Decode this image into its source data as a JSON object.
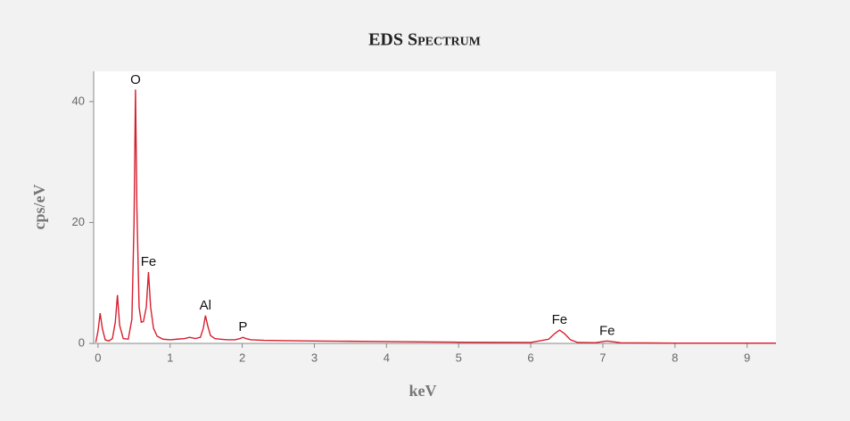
{
  "chart_data": {
    "type": "line",
    "title": "EDS Spectrum",
    "x_label": "keV",
    "y_label": "cps/eV",
    "color": "#d6202f",
    "x": [
      -0.03,
      0.0,
      0.03,
      0.06,
      0.1,
      0.15,
      0.2,
      0.24,
      0.27,
      0.3,
      0.35,
      0.42,
      0.47,
      0.5,
      0.52,
      0.54,
      0.57,
      0.6,
      0.63,
      0.67,
      0.7,
      0.73,
      0.77,
      0.82,
      0.9,
      1.0,
      1.1,
      1.2,
      1.27,
      1.35,
      1.42,
      1.46,
      1.49,
      1.52,
      1.56,
      1.62,
      1.7,
      1.8,
      1.9,
      1.97,
      2.01,
      2.05,
      2.12,
      2.3,
      2.6,
      3.0,
      3.5,
      4.0,
      4.5,
      5.0,
      5.5,
      6.0,
      6.25,
      6.33,
      6.4,
      6.47,
      6.55,
      6.65,
      6.9,
      7.0,
      7.06,
      7.12,
      7.25,
      7.6,
      8.0,
      8.5,
      9.0,
      9.4
    ],
    "values": [
      0.2,
      2.0,
      5.0,
      2.5,
      0.6,
      0.4,
      0.8,
      3.5,
      8.0,
      3.0,
      0.8,
      0.7,
      4.0,
      20,
      42,
      22,
      6,
      3.5,
      3.6,
      6,
      11.8,
      6,
      2.5,
      1.2,
      0.7,
      0.6,
      0.7,
      0.8,
      1.0,
      0.8,
      1.0,
      2.5,
      4.6,
      3.0,
      1.3,
      0.8,
      0.7,
      0.6,
      0.6,
      0.8,
      1.0,
      0.8,
      0.6,
      0.5,
      0.45,
      0.4,
      0.35,
      0.3,
      0.25,
      0.2,
      0.18,
      0.15,
      0.7,
      1.6,
      2.2,
      1.6,
      0.6,
      0.15,
      0.12,
      0.3,
      0.4,
      0.3,
      0.1,
      0.08,
      0.05,
      0.05,
      0.05,
      0.05
    ],
    "xlim": [
      -0.06,
      9.4
    ],
    "ylim": [
      0,
      45
    ],
    "xticks": [
      0,
      1,
      2,
      3,
      4,
      5,
      6,
      7,
      8,
      9
    ],
    "yticks": [
      0,
      20,
      40
    ],
    "annotations": [
      {
        "text": "O",
        "x": 0.52
      },
      {
        "text": "Fe",
        "x": 0.7
      },
      {
        "text": "Al",
        "x": 1.49
      },
      {
        "text": "P",
        "x": 2.01
      },
      {
        "text": "Fe",
        "x": 6.4
      },
      {
        "text": "Fe",
        "x": 7.06
      }
    ]
  }
}
